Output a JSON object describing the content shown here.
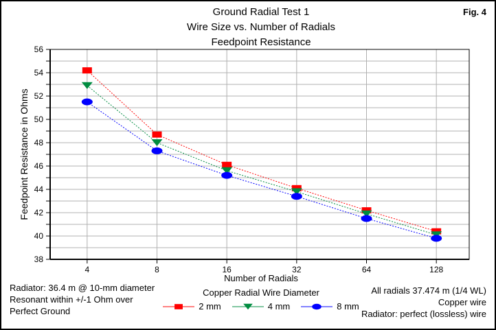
{
  "fig_label": "Fig. 4",
  "titles": [
    "Ground Radial Test 1",
    "Wire Size vs. Number of Radials",
    "Feedpoint Resistance"
  ],
  "legend": {
    "title": "Copper Radial Wire Diameter"
  },
  "footer": {
    "left": [
      "Radiator: 36.4 m @ 10-mm diameter",
      "Resonant within +/-1 Ohm over",
      "Perfect Ground"
    ],
    "right": [
      "All radials 37.474 m (1/4 WL)",
      "Copper wire",
      "Radiator: perfect (lossless) wire"
    ]
  },
  "chart_data": {
    "type": "line",
    "title": "Ground Radial Test 1 - Wire Size vs. Number of Radials - Feedpoint Resistance",
    "categories": [
      "4",
      "8",
      "16",
      "32",
      "64",
      "128"
    ],
    "series": [
      {
        "name": "2 mm",
        "color": "#ff0000",
        "marker": "square",
        "values": [
          54.2,
          48.7,
          46.1,
          44.1,
          42.2,
          40.4
        ]
      },
      {
        "name": "4 mm",
        "color": "#008c40",
        "marker": "triangle-down",
        "values": [
          52.9,
          48.0,
          45.6,
          43.8,
          41.9,
          40.1
        ]
      },
      {
        "name": "8 mm",
        "color": "#0000ff",
        "marker": "circle",
        "values": [
          51.5,
          47.3,
          45.2,
          43.4,
          41.5,
          39.8
        ]
      }
    ],
    "xlabel": "Number of Radials",
    "ylabel": "Feedpoint Resistance in Ohms",
    "ylim": [
      38,
      56
    ],
    "y_major_step": 2,
    "y_minor_step": 1,
    "grid": true,
    "gridline_color": "#b0b0b0",
    "axis_color": "#000000",
    "legend_position": "bottom"
  }
}
